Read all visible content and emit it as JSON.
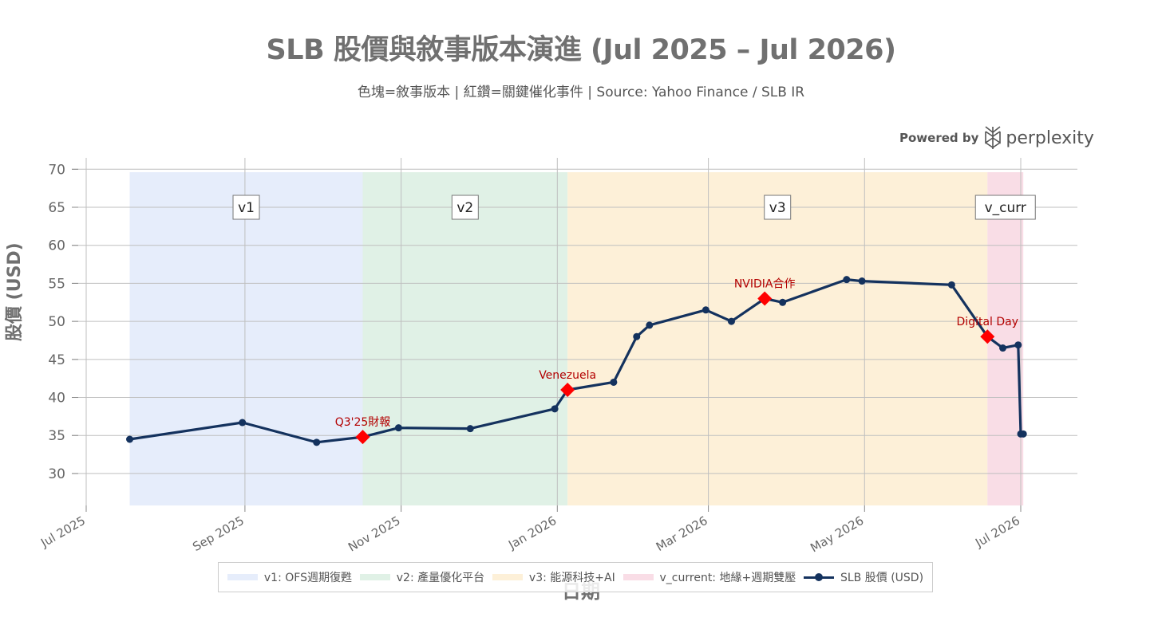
{
  "title": "SLB 股價與敘事版本演進 (Jul 2025 – Jul 2026)",
  "subtitle": "色塊=敘事版本 | 紅鑽=關鍵催化事件 | Source: Yahoo Finance / SLB IR",
  "branding": {
    "powered_by": "Powered by",
    "brand": "perplexity"
  },
  "chart_data": {
    "type": "line",
    "xlabel": "日期",
    "ylabel": "股價 (USD)",
    "ylim": [
      25.8,
      71.5
    ],
    "xlim": [
      "2025-07-01",
      "2026-07-03"
    ],
    "y_ticks": [
      30,
      35,
      40,
      45,
      50,
      55,
      60,
      65,
      70
    ],
    "x_ticks": [
      {
        "date": "2025-07-01",
        "label": "Jul 2025"
      },
      {
        "date": "2025-09-01",
        "label": "Sep 2025"
      },
      {
        "date": "2025-11-01",
        "label": "Nov 2025"
      },
      {
        "date": "2026-01-01",
        "label": "Jan 2026"
      },
      {
        "date": "2026-03-01",
        "label": "Mar 2026"
      },
      {
        "date": "2026-05-01",
        "label": "May 2026"
      },
      {
        "date": "2026-07-01",
        "label": "Jul 2026"
      }
    ],
    "grid": true,
    "legend_position": "bottom",
    "series": [
      {
        "name": "SLB 股價 (USD)",
        "color": "#14325e",
        "points": [
          {
            "x": "2025-07-18",
            "y": 34.5
          },
          {
            "x": "2025-08-31",
            "y": 36.7
          },
          {
            "x": "2025-09-29",
            "y": 34.1
          },
          {
            "x": "2025-10-17",
            "y": 34.8
          },
          {
            "x": "2025-10-31",
            "y": 36.0
          },
          {
            "x": "2025-11-28",
            "y": 35.9
          },
          {
            "x": "2025-12-31",
            "y": 38.5
          },
          {
            "x": "2026-01-05",
            "y": 41.0
          },
          {
            "x": "2026-01-23",
            "y": 42.0
          },
          {
            "x": "2026-02-01",
            "y": 48.0
          },
          {
            "x": "2026-02-06",
            "y": 49.5
          },
          {
            "x": "2026-02-28",
            "y": 51.5
          },
          {
            "x": "2026-03-10",
            "y": 50.0
          },
          {
            "x": "2026-03-23",
            "y": 53.0
          },
          {
            "x": "2026-03-30",
            "y": 52.5
          },
          {
            "x": "2026-04-24",
            "y": 55.5
          },
          {
            "x": "2026-04-30",
            "y": 55.3
          },
          {
            "x": "2026-06-04",
            "y": 54.8
          },
          {
            "x": "2026-06-18",
            "y": 48.0
          },
          {
            "x": "2026-06-24",
            "y": 46.5
          },
          {
            "x": "2026-06-30",
            "y": 46.9
          },
          {
            "x": "2026-07-01",
            "y": 35.2
          },
          {
            "x": "2026-07-02",
            "y": 35.2
          }
        ]
      }
    ],
    "events": [
      {
        "x": "2025-10-17",
        "y": 34.8,
        "label": "Q3'25財報"
      },
      {
        "x": "2026-01-05",
        "y": 41.0,
        "label": "Venezuela"
      },
      {
        "x": "2026-03-23",
        "y": 53.0,
        "label": "NVIDIA合作"
      },
      {
        "x": "2026-06-18",
        "y": 48.0,
        "label": "Digital Day"
      }
    ],
    "event_color": "#ff0000",
    "event_label_color": "#b30000",
    "regions": [
      {
        "start": "2025-07-18",
        "end": "2025-10-17",
        "label": "v1",
        "legend": "v1: OFS週期復甦",
        "color": "#e6edfb"
      },
      {
        "start": "2025-10-17",
        "end": "2026-01-05",
        "label": "v2",
        "legend": "v2: 產量優化平台",
        "color": "#e0f1e6"
      },
      {
        "start": "2026-01-05",
        "end": "2026-06-18",
        "label": "v3",
        "legend": "v3: 能源科技+AI",
        "color": "#fdf0d8"
      },
      {
        "start": "2026-06-18",
        "end": "2026-07-02",
        "label": "v_curr",
        "legend": "v_current: 地緣+週期雙壓",
        "color": "#f9dde6"
      }
    ],
    "region_label_y": 65
  }
}
